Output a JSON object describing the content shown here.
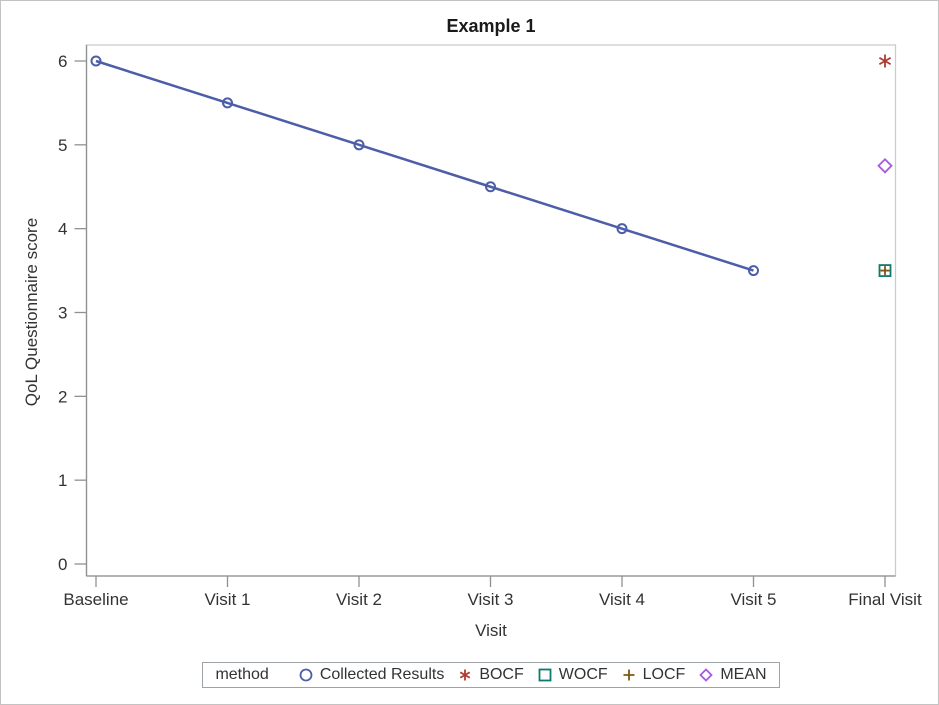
{
  "window": {
    "background": "#ffffff",
    "border_color": "#c3c3c3"
  },
  "chart_data": {
    "type": "line",
    "title": "Example 1",
    "xlabel": "Visit",
    "ylabel": "QoL Questionnaire score",
    "categories": [
      "Baseline",
      "Visit 1",
      "Visit 2",
      "Visit 3",
      "Visit 4",
      "Visit 5",
      "Final Visit"
    ],
    "y_ticks": [
      "0",
      "1",
      "2",
      "3",
      "4",
      "5",
      "6"
    ],
    "ylim": [
      0,
      6
    ],
    "grid": false,
    "series": [
      {
        "name": "Collected Results",
        "marker": "circle",
        "color": "#4d5ea8",
        "line": true,
        "x": [
          "Baseline",
          "Visit 1",
          "Visit 2",
          "Visit 3",
          "Visit 4",
          "Visit 5"
        ],
        "values": [
          6,
          5.5,
          5,
          4.5,
          4,
          3.5
        ]
      }
    ],
    "point_series": [
      {
        "name": "BOCF",
        "marker": "asterisk",
        "color": "#ae3b31",
        "x": "Final Visit",
        "value": 6
      },
      {
        "name": "WOCF",
        "marker": "square",
        "color": "#0e7a6e",
        "x": "Final Visit",
        "value": 3.5
      },
      {
        "name": "LOCF",
        "marker": "plus",
        "color": "#7e5715",
        "x": "Final Visit",
        "value": 3.5
      },
      {
        "name": "MEAN",
        "marker": "diamond",
        "color": "#a75be0",
        "x": "Final Visit",
        "value": 4.75
      }
    ],
    "legend": {
      "title": "method",
      "position": "bottom",
      "entries": [
        {
          "label": "Collected Results",
          "marker": "circle",
          "color": "#4d5ea8"
        },
        {
          "label": "BOCF",
          "marker": "asterisk",
          "color": "#ae3b31"
        },
        {
          "label": "WOCF",
          "marker": "square",
          "color": "#0e7a6e"
        },
        {
          "label": "LOCF",
          "marker": "plus",
          "color": "#7e5715"
        },
        {
          "label": "MEAN",
          "marker": "diamond",
          "color": "#a75be0"
        }
      ]
    }
  },
  "styles": {
    "text_color": "#333333",
    "axis_color": "#8e9194",
    "wall_border_color": "#c9cccf",
    "tick_font_size": "17"
  }
}
